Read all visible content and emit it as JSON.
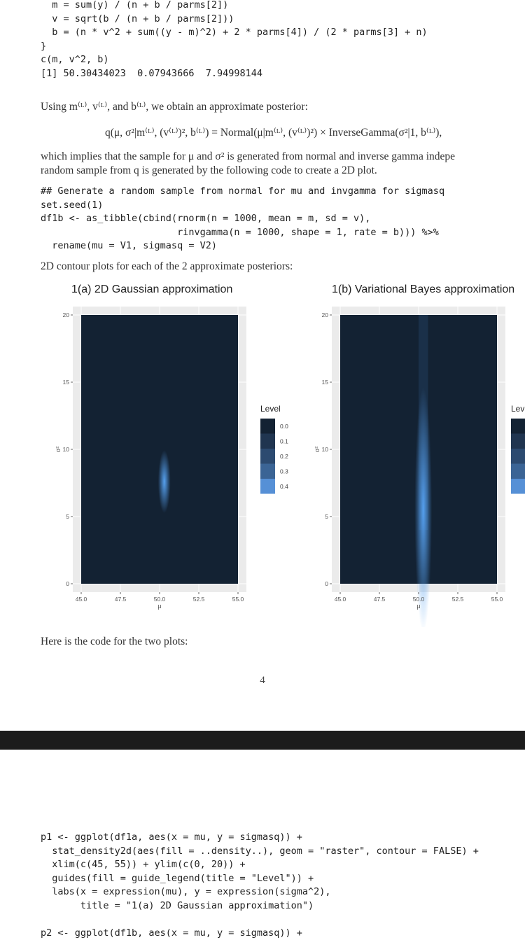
{
  "code_top": [
    "  m = sum(y) / (n + b / parms[2])",
    "  v = sqrt(b / (n + b / parms[2]))",
    "  b = (n * v^2 + sum((y - m)^2) + 2 * parms[4]) / (2 * parms[3] + n)",
    "}",
    "c(m, v^2, b)",
    "[1] 50.30434023  0.07943666  7.94998144"
  ],
  "para1": "Using m⁽ᴸ⁾, v⁽ᴸ⁾, and b⁽ᴸ⁾, we obtain an approximate posterior:",
  "equation": "q(μ, σ²|m⁽ᴸ⁾, (v⁽ᴸ⁾)², b⁽ᴸ⁾) = Normal(μ|m⁽ᴸ⁾, (v⁽ᴸ⁾)²) × InverseGamma(σ²|1, b⁽ᴸ⁾),",
  "para2_line1": "which implies that the sample for μ and σ² is generated from normal and inverse gamma indepe",
  "para2_line2": "random sample from q is generated by the following code to create a 2D plot.",
  "code_mid": [
    "## Generate a random sample from normal for mu and invgamma for sigmasq",
    "set.seed(1)",
    "df1b <- as_tibble(cbind(rnorm(n = 1000, mean = m, sd = v),",
    "                        rinvgamma(n = 1000, shape = 1, rate = b))) %>%",
    "  rename(mu = V1, sigmasq = V2)"
  ],
  "para3": "2D contour plots for each of the 2 approximate posteriors:",
  "chart_data": [
    {
      "type": "heatmap",
      "title": "1(a) 2D Gaussian approximation",
      "xlabel": "μ",
      "ylabel": "σ²",
      "xlim": [
        45,
        55
      ],
      "ylim": [
        0,
        20
      ],
      "xticks": [
        "45.0",
        "47.5",
        "50.0",
        "52.5",
        "55.0"
      ],
      "yticks": [
        "0",
        "5",
        "10",
        "15",
        "20"
      ],
      "density_peak": {
        "mu": 50.3,
        "sigmasq": 7.6,
        "sd_mu": 0.18,
        "sd_sigmasq": 0.9
      },
      "grid": true,
      "legend": {
        "title": "Level",
        "items": [
          "0.0",
          "0.1",
          "0.2",
          "0.3",
          "0.4"
        ],
        "placement": "right"
      }
    },
    {
      "type": "heatmap",
      "title": "1(b) Variational Bayes approximation",
      "xlabel": "μ",
      "ylabel": "σ²",
      "xlim": [
        45,
        55
      ],
      "ylim": [
        0,
        20
      ],
      "xticks": [
        "45.0",
        "47.5",
        "50.0",
        "52.5",
        "55.0"
      ],
      "yticks": [
        "0",
        "5",
        "10",
        "15",
        "20"
      ],
      "density_peak": {
        "mu": 50.3,
        "sigmasq": 5.5,
        "sd_mu": 0.25,
        "sd_sigmasq": 3.5
      },
      "grid": true,
      "legend": {
        "title": "Lev",
        "items": [],
        "placement": "right"
      }
    }
  ],
  "colors": {
    "fill_dark": "#132233",
    "fill_light": "#56a0ee",
    "panel_bg": "#ebebeb",
    "grid": "#ffffff",
    "legend_levels": [
      "#132233",
      "#203550",
      "#2c4a70",
      "#3b6495",
      "#5690d6"
    ]
  },
  "para4": "Here is the code for the two plots:",
  "page_number": "4",
  "code_bottom": [
    "p1 <- ggplot(df1a, aes(x = mu, y = sigmasq)) +",
    "  stat_density2d(aes(fill = ..density..), geom = \"raster\", contour = FALSE) +",
    "  xlim(c(45, 55)) + ylim(c(0, 20)) +",
    "  guides(fill = guide_legend(title = \"Level\")) +",
    "  labs(x = expression(mu), y = expression(sigma^2),",
    "       title = \"1(a) 2D Gaussian approximation\")",
    "",
    "p2 <- ggplot(df1b, aes(x = mu, y = sigmasq)) +"
  ]
}
